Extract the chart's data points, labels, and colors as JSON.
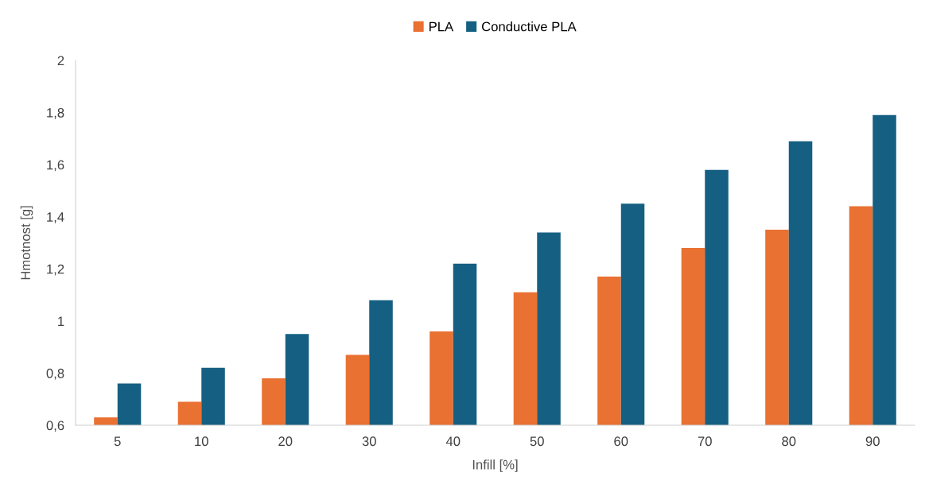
{
  "chart_data": {
    "type": "bar",
    "xlabel": "Infill [%]",
    "ylabel": "Hmotnost [g]",
    "categories": [
      "5",
      "10",
      "20",
      "30",
      "40",
      "50",
      "60",
      "70",
      "80",
      "90"
    ],
    "series": [
      {
        "name": "PLA",
        "color": "#e97132",
        "values": [
          0.63,
          0.69,
          0.78,
          0.87,
          0.96,
          1.11,
          1.17,
          1.28,
          1.35,
          1.44
        ]
      },
      {
        "name": "Conductive PLA",
        "color": "#156082",
        "values": [
          0.76,
          0.82,
          0.95,
          1.08,
          1.22,
          1.34,
          1.45,
          1.58,
          1.69,
          1.79
        ]
      }
    ],
    "ylim": [
      0.6,
      2
    ],
    "yticks": [
      {
        "value": 0.6,
        "label": "0,6"
      },
      {
        "value": 0.8,
        "label": "0,8"
      },
      {
        "value": 1,
        "label": "1"
      },
      {
        "value": 1.2,
        "label": "1,2"
      },
      {
        "value": 1.4,
        "label": "1,4"
      },
      {
        "value": 1.6,
        "label": "1,6"
      },
      {
        "value": 1.8,
        "label": "1,8"
      },
      {
        "value": 2,
        "label": "2"
      }
    ],
    "grid": false,
    "legend": "top"
  }
}
